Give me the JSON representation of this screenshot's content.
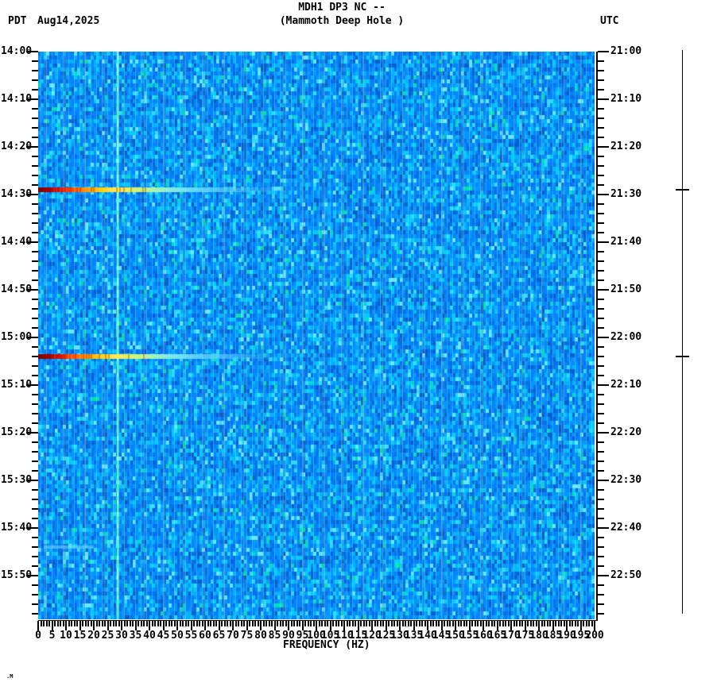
{
  "header": {
    "left_zone": "PDT",
    "date": "Aug14,2025",
    "title": "MDH1 DP3 NC --",
    "subtitle": "(Mammoth Deep Hole )",
    "right_zone": "UTC"
  },
  "corner_mark": ".M",
  "axes": {
    "left_time_labels": [
      "14:00",
      "14:10",
      "14:20",
      "14:30",
      "14:40",
      "14:50",
      "15:00",
      "15:10",
      "15:20",
      "15:30",
      "15:40",
      "15:50"
    ],
    "right_time_labels": [
      "21:00",
      "21:10",
      "21:20",
      "21:30",
      "21:40",
      "21:50",
      "22:00",
      "22:10",
      "22:20",
      "22:30",
      "22:40",
      "22:50"
    ],
    "freq_labels": [
      "0",
      "5",
      "10",
      "15",
      "20",
      "25",
      "30",
      "35",
      "40",
      "45",
      "50",
      "55",
      "60",
      "65",
      "70",
      "75",
      "80",
      "85",
      "90",
      "95",
      "100",
      "105",
      "110",
      "115",
      "120",
      "125",
      "130",
      "135",
      "140",
      "145",
      "150",
      "155",
      "160",
      "165",
      "170",
      "175",
      "180",
      "185",
      "190",
      "195",
      "200"
    ],
    "bottom_axis_label": "FREQUENCY (HZ)"
  },
  "chart_data": {
    "type": "heatmap",
    "title": "MDH1 DP3 NC --",
    "subtitle": "(Mammoth Deep Hole )",
    "xlabel": "FREQUENCY (HZ)",
    "x_range_hz": [
      0,
      200
    ],
    "x_major_tick_step_hz": 5,
    "x_minor_tick_step_hz": 1,
    "time_axis": {
      "left_zone": "PDT",
      "right_zone": "UTC",
      "date": "Aug14,2025",
      "start_pdt": "14:00",
      "end_pdt": "15:59",
      "start_utc": "21:00",
      "end_utc": "22:59",
      "major_tick_step_min": 10,
      "minor_tick_step_min": 2
    },
    "background_noise_palette": [
      {
        "color": "#0072e8",
        "weight": 0.18
      },
      {
        "color": "#0084ff",
        "weight": 0.26
      },
      {
        "color": "#0098ff",
        "weight": 0.18
      },
      {
        "color": "#00b4ff",
        "weight": 0.12
      },
      {
        "color": "#00ccff",
        "weight": 0.08
      },
      {
        "color": "#2edcff",
        "weight": 0.05
      },
      {
        "color": "#0060d0",
        "weight": 0.08
      },
      {
        "color": "#00e0b0",
        "weight": 0.02
      },
      {
        "color": "#66e8ff",
        "weight": 0.03
      }
    ],
    "column_gridline": {
      "color": "rgba(150,140,115,0.55)",
      "spacing_hz": 7.14,
      "offset_hz": 2.3
    },
    "persistent_tone": {
      "frequency_hz": 28.5,
      "color": "#5ff0c0",
      "alt_color": "#8bffde"
    },
    "events": [
      {
        "time_pdt": "14:29",
        "time_utc": "21:29",
        "freq_extent_hz": [
          0,
          83
        ],
        "peak_color": "#7a0000",
        "description": "broadband event streak, dark red at low freq grading through orange/yellow to cyan tail"
      },
      {
        "time_pdt": "15:04",
        "time_utc": "22:04",
        "freq_extent_hz": [
          0,
          80
        ],
        "peak_color": "#7a0000",
        "description": "broadband event streak, dark red at low freq grading through orange/yellow to cyan tail"
      }
    ],
    "event_gradient_stops": [
      [
        0.0,
        "#7a0000"
      ],
      [
        0.05,
        "#a80000"
      ],
      [
        0.09,
        "#e01500"
      ],
      [
        0.13,
        "#ff4c00"
      ],
      [
        0.18,
        "#ff8c00"
      ],
      [
        0.23,
        "#ffc400"
      ],
      [
        0.29,
        "#ffe84a"
      ],
      [
        0.37,
        "#d2f468"
      ],
      [
        0.46,
        "#9ef2c2"
      ],
      [
        0.56,
        "#6fe2f6"
      ],
      [
        0.78,
        "rgba(85,200,255,0.55)"
      ],
      [
        1.0,
        "rgba(60,160,240,0)"
      ]
    ],
    "faint_band": {
      "time_pdt": "15:44",
      "freq_extent_hz": [
        2,
        20
      ],
      "color": "rgba(120,215,255,0.55)"
    },
    "right_event_marker_bar": {
      "present": true,
      "tick_times_utc": [
        "21:29",
        "22:04"
      ]
    }
  }
}
